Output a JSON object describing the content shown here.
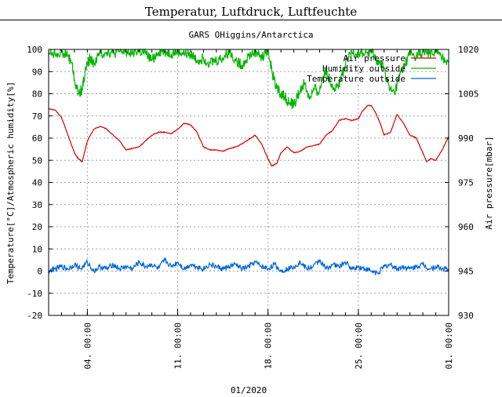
{
  "page": {
    "title": "Temperatur, Luftdruck, Luftfeuchte"
  },
  "chart_data": {
    "type": "line",
    "title": "GARS OHiggins/Antarctica",
    "xlabel": "01/2020",
    "ylabel_left": "Temperature[°C]/Atmospheric humidity[%]",
    "ylabel_right": "Air pressure[mbar]",
    "ylim_left": [
      -20,
      100
    ],
    "yticks_left": [
      "100",
      "90",
      "80",
      "70",
      "60",
      "50",
      "40",
      "30",
      "20",
      "10",
      "0",
      "-10",
      "-20"
    ],
    "ylim_right": [
      930,
      1020
    ],
    "yticks_right": [
      "1020",
      "1005",
      "990",
      "975",
      "960",
      "945",
      "930"
    ],
    "xlim_days": [
      0,
      31
    ],
    "xticks": [
      {
        "day": 3,
        "label": "04. 00:00"
      },
      {
        "day": 10,
        "label": "11. 00:00"
      },
      {
        "day": 17,
        "label": "18. 00:00"
      },
      {
        "day": 24,
        "label": "25. 00:00"
      },
      {
        "day": 31,
        "label": "01. 00:00"
      }
    ],
    "grid": true,
    "legend_position": "top-right",
    "series": [
      {
        "name": "Air pressure",
        "color": "#d40000",
        "axis": "right",
        "x": [
          0,
          0.5,
          1,
          1.5,
          2,
          2.3,
          2.6,
          3,
          3.5,
          4,
          4.5,
          5,
          5.5,
          6,
          6.5,
          7,
          7.5,
          8,
          8.5,
          9,
          9.5,
          10,
          10.5,
          11,
          11.5,
          12,
          12.5,
          13,
          13.5,
          14,
          14.5,
          15,
          15.5,
          16,
          16.5,
          17,
          17.3,
          17.7,
          18,
          18.5,
          19,
          19.5,
          20,
          20.5,
          21,
          21.5,
          22,
          22.5,
          23,
          23.5,
          24,
          24.3,
          24.7,
          25,
          25.3,
          25.7,
          26,
          26.5,
          27,
          27.5,
          28,
          28.5,
          29,
          29.3,
          29.6,
          30,
          30.5,
          31
        ],
        "values": [
          1000,
          999.5,
          997,
          991,
          985,
          983,
          982,
          989,
          993,
          994,
          993,
          991,
          989,
          986,
          986.5,
          987,
          989,
          991,
          992,
          992,
          991.5,
          993,
          995,
          994.5,
          992,
          987,
          986,
          986,
          985.5,
          986.5,
          987,
          988,
          989.5,
          991,
          988,
          983,
          980.5,
          981.5,
          985,
          987,
          985,
          985.5,
          987,
          987.5,
          988,
          991,
          992.5,
          996,
          996.5,
          996,
          996.5,
          999,
          1001,
          1001,
          999,
          995,
          991,
          992,
          998,
          995,
          991,
          990,
          985,
          982,
          983,
          982.5,
          986,
          990.5
        ]
      },
      {
        "name": "Humidity outside",
        "color": "#00b400",
        "axis": "left",
        "x": [
          0,
          0.5,
          1,
          1.5,
          1.8,
          2,
          2.3,
          2.6,
          2.9,
          3.2,
          3.5,
          4,
          4.5,
          5,
          5.5,
          6,
          6.5,
          7,
          7.5,
          8,
          8.5,
          9,
          9.5,
          10,
          10.5,
          11,
          11.5,
          12,
          12.5,
          13,
          13.5,
          14,
          14.5,
          15,
          15.5,
          16,
          16.3,
          16.5,
          16.8,
          17,
          17.3,
          17.6,
          18,
          18.3,
          18.6,
          19,
          19.4,
          19.8,
          20.2,
          20.6,
          21,
          21.4,
          21.8,
          22.2,
          22.6,
          23,
          23.5,
          24,
          24.5,
          25,
          25.3,
          25.7,
          26,
          26.4,
          26.8,
          27.2,
          27.6,
          28,
          28.5,
          29,
          29.5,
          30,
          30.5,
          31
        ],
        "values": [
          99,
          98,
          99,
          97,
          94,
          86,
          80,
          82,
          92,
          96,
          94,
          98,
          99,
          98,
          99,
          99,
          99,
          99,
          98,
          95,
          99,
          99,
          98,
          99,
          98,
          98,
          95,
          96,
          94,
          95,
          96,
          99,
          95,
          93,
          97,
          99,
          98,
          96,
          99,
          100,
          90,
          84,
          80,
          79,
          76,
          75,
          80,
          85,
          78,
          82,
          81,
          91,
          86,
          82,
          86,
          93,
          99,
          98,
          98,
          99,
          96,
          93,
          92,
          82,
          80,
          88,
          93,
          98,
          97,
          99,
          98,
          99,
          96,
          95
        ]
      },
      {
        "name": "Temperature outside",
        "color": "#0064dc",
        "axis": "left",
        "x": [
          0,
          0.5,
          1,
          1.5,
          2,
          2.5,
          3,
          3.5,
          4,
          4.5,
          5,
          5.5,
          6,
          6.5,
          7,
          7.5,
          8,
          8.5,
          9,
          9.5,
          10,
          10.5,
          11,
          11.5,
          12,
          12.5,
          13,
          13.5,
          14,
          14.5,
          15,
          15.5,
          16,
          16.5,
          17,
          17.5,
          18,
          18.5,
          19,
          19.5,
          20,
          20.5,
          21,
          21.5,
          22,
          22.5,
          23,
          23.5,
          24,
          24.5,
          25,
          25.5,
          26,
          26.5,
          27,
          27.5,
          28,
          28.5,
          29,
          29.5,
          30,
          30.5,
          31
        ],
        "values": [
          0,
          1,
          2,
          1,
          3,
          1,
          4,
          0,
          2,
          1,
          3,
          1,
          2,
          1,
          4,
          2,
          3,
          1,
          5,
          2,
          4,
          1,
          3,
          2,
          1,
          3,
          2,
          1,
          2,
          3,
          1,
          2,
          4,
          2,
          1,
          3,
          0,
          1,
          2,
          4,
          1,
          2,
          5,
          1,
          3,
          2,
          4,
          1,
          2,
          1,
          0,
          -1,
          2,
          3,
          1,
          2,
          1,
          2,
          3,
          1,
          2,
          1,
          1
        ]
      }
    ]
  }
}
